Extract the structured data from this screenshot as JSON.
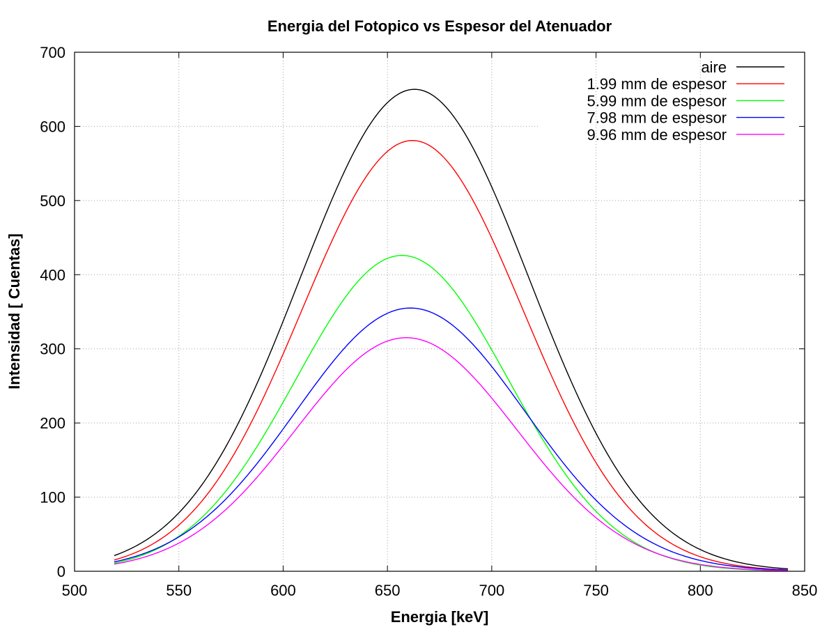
{
  "chart_data": {
    "type": "line",
    "title": "Energia del Fotopico vs Espesor del Atenuador",
    "xlabel": "Energia [keV]",
    "ylabel": "Intensidad [ Cuentas]",
    "xlim": [
      500,
      850
    ],
    "ylim": [
      0,
      700
    ],
    "x_ticks": [
      500,
      550,
      600,
      650,
      700,
      750,
      800,
      850
    ],
    "y_ticks": [
      0,
      100,
      200,
      300,
      400,
      500,
      600,
      700
    ],
    "grid": true,
    "legend_position": "top-right",
    "x_range": [
      519,
      842
    ],
    "series": [
      {
        "name": "aire",
        "color": "#000000",
        "model": {
          "amplitude": 650,
          "center": 663,
          "sigma": 55
        }
      },
      {
        "name": "1.99 mm de espesor",
        "color": "#ff0000",
        "model": {
          "amplitude": 581,
          "center": 662,
          "sigma": 53
        }
      },
      {
        "name": "5.99 mm de espesor",
        "color": "#00ff00",
        "model": {
          "amplitude": 426,
          "center": 657,
          "sigma": 51
        }
      },
      {
        "name": "7.98 mm de espesor",
        "color": "#0000ff",
        "model": {
          "amplitude": 355,
          "center": 661,
          "sigma": 55
        }
      },
      {
        "name": "9.96 mm de espesor",
        "color": "#ff00ff",
        "model": {
          "amplitude": 315,
          "center": 659,
          "sigma": 53
        }
      }
    ]
  }
}
